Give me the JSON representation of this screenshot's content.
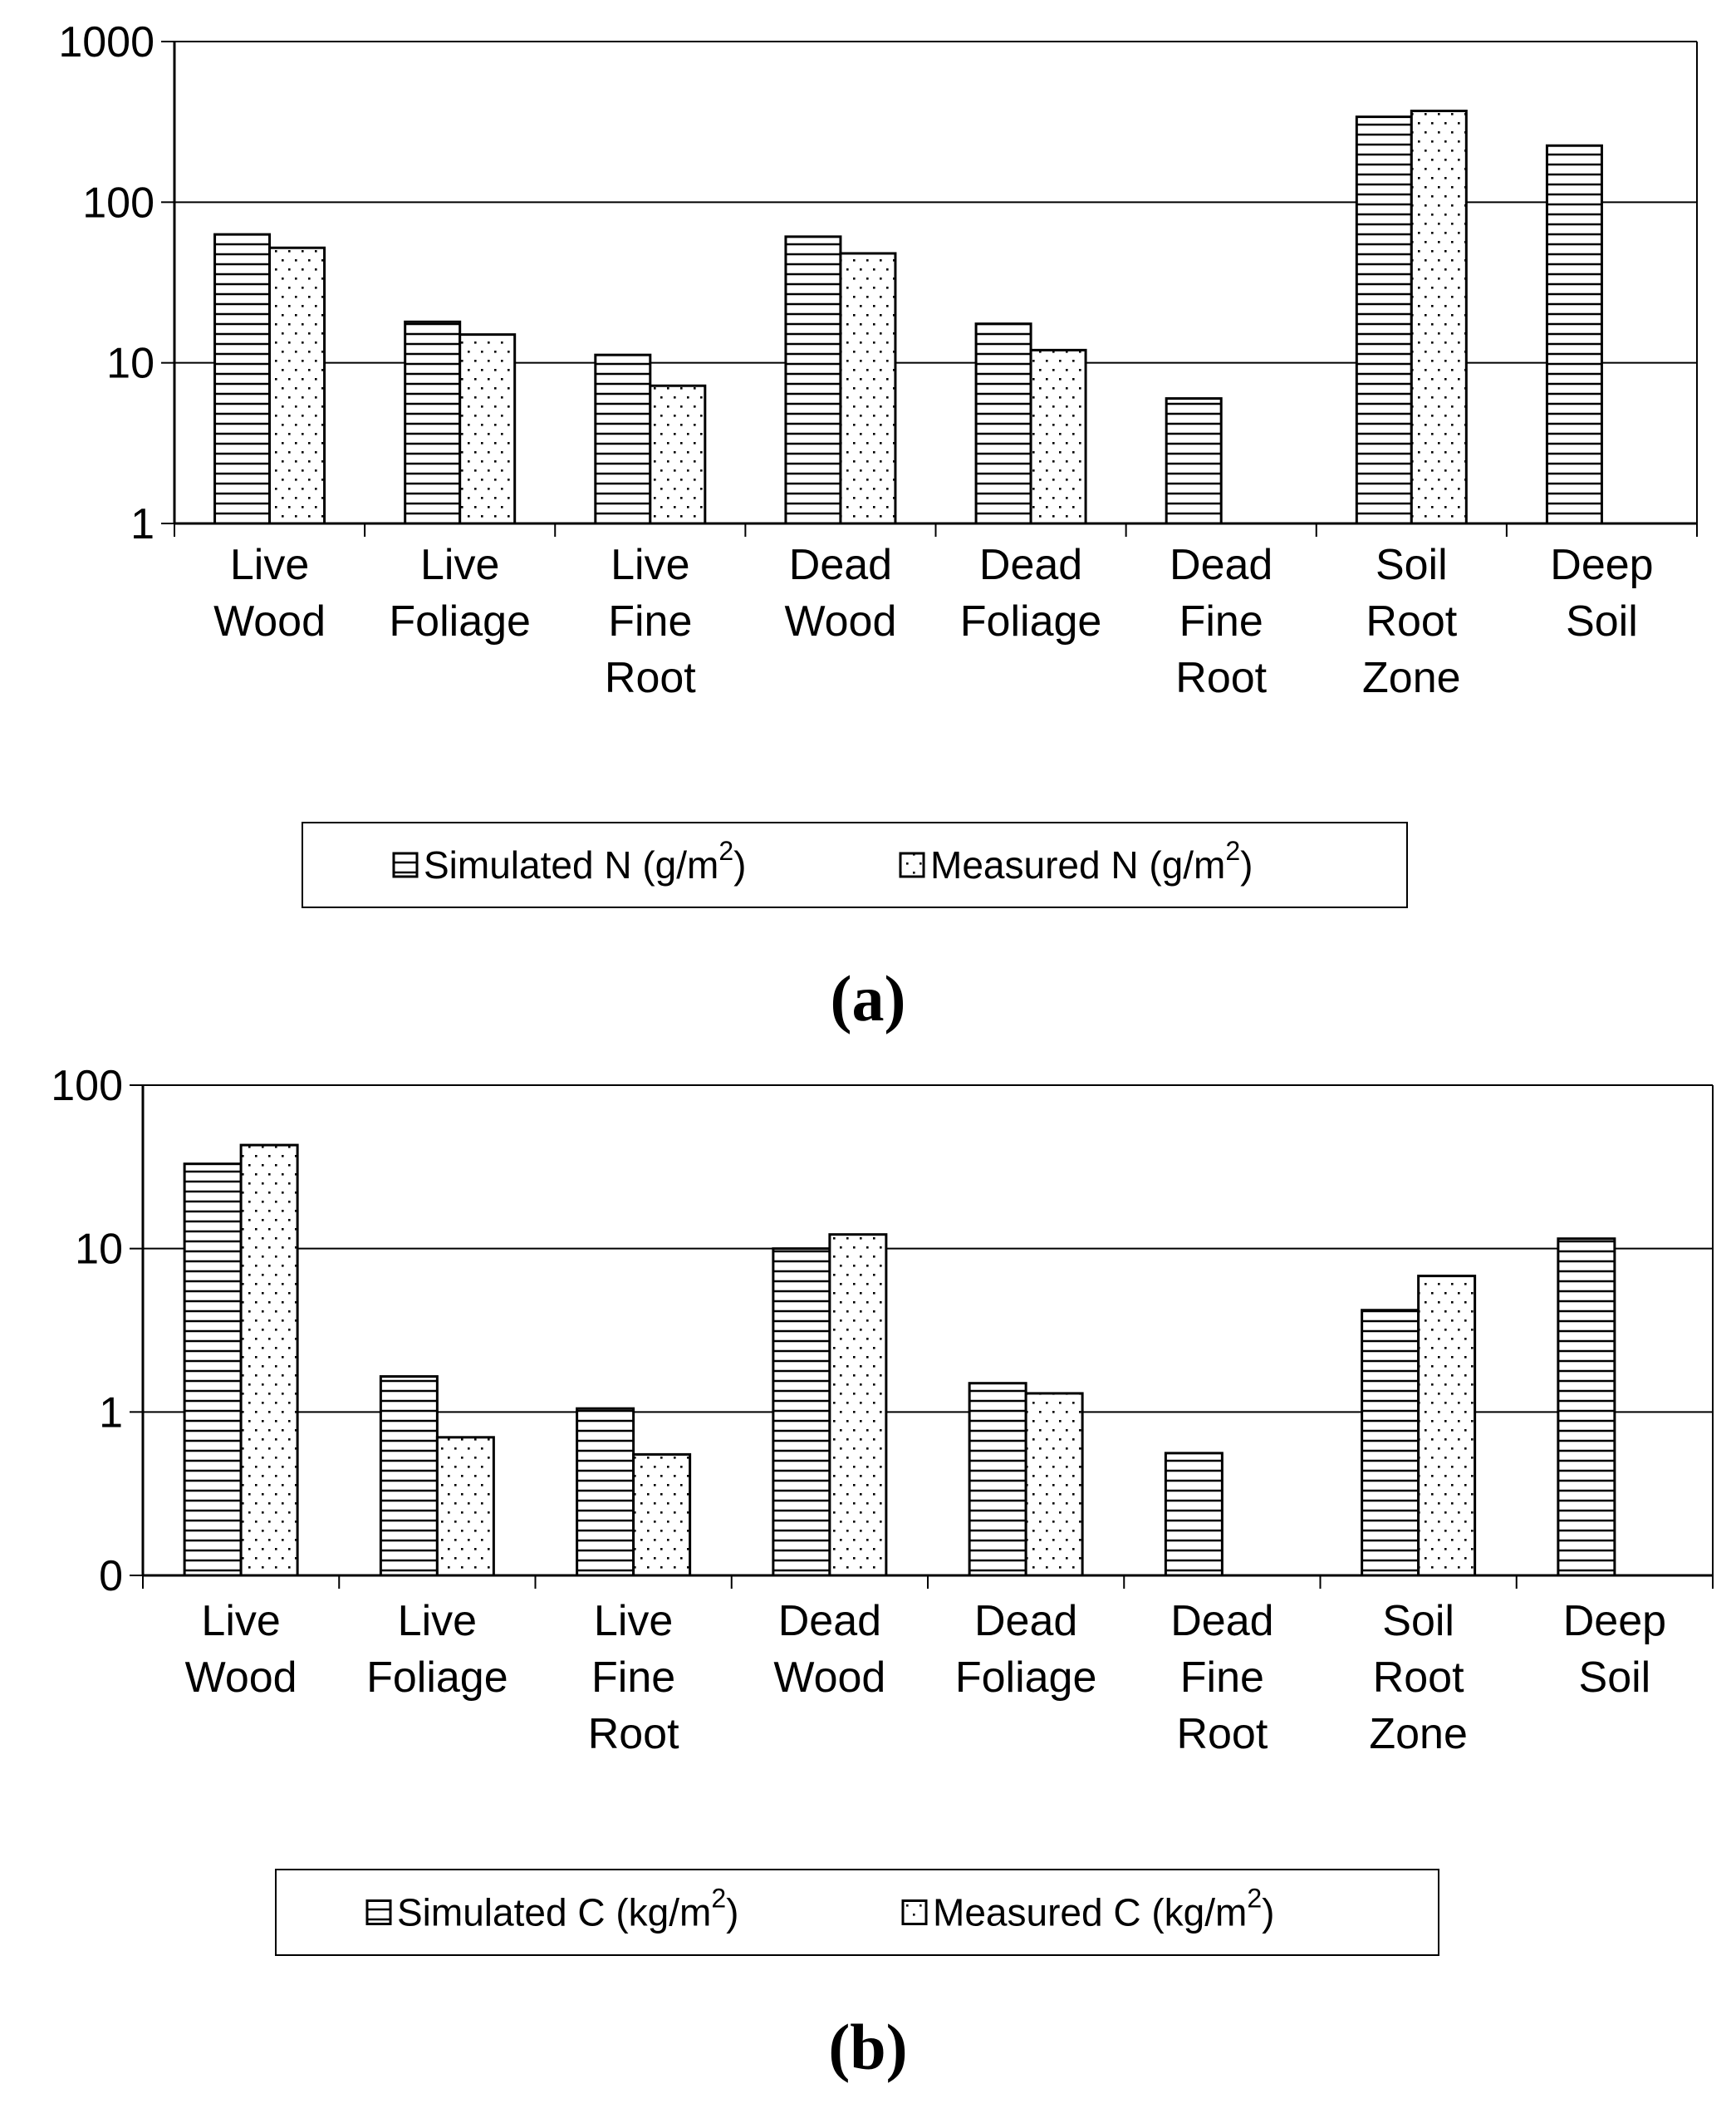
{
  "colors": {
    "bar_fill": "#ffffff",
    "stroke": "#000000",
    "background": "#ffffff"
  },
  "chart_data": [
    {
      "type": "bar",
      "panel_label": "a",
      "yscale": "log",
      "ylim": [
        1,
        1000
      ],
      "yticks": [
        1,
        10,
        100,
        1000
      ],
      "ytick_labels": [
        "1",
        "10",
        "100",
        "1000"
      ],
      "grid": true,
      "legend_placement": "bottom",
      "categories": [
        [
          "Live",
          "Wood"
        ],
        [
          "Live",
          "Foliage"
        ],
        [
          "Live",
          "Fine",
          "Root"
        ],
        [
          "Dead",
          "Wood"
        ],
        [
          "Dead",
          "Foliage"
        ],
        [
          "Dead",
          "Fine",
          "Root"
        ],
        [
          "Soil",
          "Root",
          "Zone"
        ],
        [
          "Deep",
          "Soil"
        ]
      ],
      "series": [
        {
          "name": "Simulated N (g/m2)",
          "label": "Simulated N (g/m",
          "sup": "2",
          "label_tail": ")",
          "pattern": "horizontal",
          "values": [
            63,
            18,
            11.2,
            61,
            17.5,
            6,
            340,
            225
          ]
        },
        {
          "name": "Measured N (g/m2)",
          "label": "Measured N (g/m",
          "sup": "2",
          "label_tail": ")",
          "pattern": "dots",
          "values": [
            52,
            15,
            7.2,
            48,
            12,
            null,
            370,
            null
          ]
        }
      ]
    },
    {
      "type": "bar",
      "panel_label": "b",
      "yscale": "log",
      "ylim": [
        0.1,
        100
      ],
      "yticks": [
        0.1,
        1,
        10,
        100
      ],
      "ytick_labels": [
        "0",
        "1",
        "10",
        "100"
      ],
      "grid": true,
      "legend_placement": "bottom",
      "categories": [
        [
          "Live",
          "Wood"
        ],
        [
          "Live",
          "Foliage"
        ],
        [
          "Live",
          "Fine",
          "Root"
        ],
        [
          "Dead",
          "Wood"
        ],
        [
          "Dead",
          "Foliage"
        ],
        [
          "Dead",
          "Fine",
          "Root"
        ],
        [
          "Soil",
          "Root",
          "Zone"
        ],
        [
          "Deep",
          "Soil"
        ]
      ],
      "series": [
        {
          "name": "Simulated C (kg/m2)",
          "label": "Simulated C (kg/m",
          "sup": "2",
          "label_tail": ")",
          "pattern": "horizontal",
          "values": [
            33,
            1.65,
            1.05,
            10,
            1.5,
            0.56,
            4.2,
            11.5
          ]
        },
        {
          "name": "Measured C (kg/m2)",
          "label": "Measured C  (kg/m",
          "sup": "2",
          "label_tail": ")",
          "pattern": "dots",
          "values": [
            43,
            0.7,
            0.55,
            12.2,
            1.3,
            null,
            6.8,
            null
          ]
        }
      ]
    }
  ]
}
